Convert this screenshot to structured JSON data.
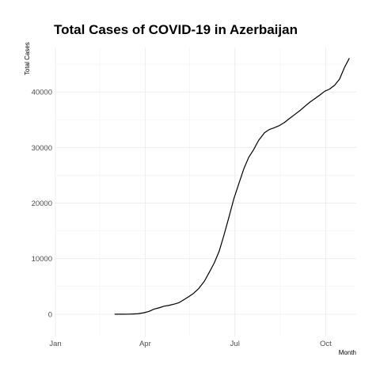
{
  "chart_data": {
    "type": "line",
    "title": "Total Cases of COVID-19 in Azerbaijan",
    "xlabel": "Month",
    "ylabel": "Total Cases",
    "grid": true,
    "xlim": [
      "2020-01-01",
      "2020-11-01"
    ],
    "ylim": [
      -4000,
      48000
    ],
    "x_ticks": [
      {
        "label": "Jan",
        "date": "2020-01-01"
      },
      {
        "label": "Apr",
        "date": "2020-04-01"
      },
      {
        "label": "Jul",
        "date": "2020-07-01"
      },
      {
        "label": "Oct",
        "date": "2020-10-01"
      }
    ],
    "y_ticks": [
      0,
      10000,
      20000,
      30000,
      40000
    ],
    "y_tick_labels": [
      "0",
      "10000",
      "20000",
      "30000",
      "40000"
    ],
    "series": [
      {
        "x": [
          "2020-03-01",
          "2020-03-05",
          "2020-03-10",
          "2020-03-15",
          "2020-03-20",
          "2020-03-25",
          "2020-03-31",
          "2020-04-05",
          "2020-04-10",
          "2020-04-15",
          "2020-04-20",
          "2020-04-25",
          "2020-05-01",
          "2020-05-05",
          "2020-05-10",
          "2020-05-15",
          "2020-05-20",
          "2020-05-25",
          "2020-05-31",
          "2020-06-05",
          "2020-06-10",
          "2020-06-15",
          "2020-06-20",
          "2020-06-25",
          "2020-06-30",
          "2020-07-05",
          "2020-07-10",
          "2020-07-15",
          "2020-07-20",
          "2020-07-25",
          "2020-07-31",
          "2020-08-05",
          "2020-08-10",
          "2020-08-15",
          "2020-08-20",
          "2020-08-25",
          "2020-08-31",
          "2020-09-05",
          "2020-09-10",
          "2020-09-15",
          "2020-09-20",
          "2020-09-25",
          "2020-09-30",
          "2020-10-05",
          "2020-10-10",
          "2020-10-15",
          "2020-10-20",
          "2020-10-25"
        ],
        "values": [
          3,
          9,
          11,
          15,
          44,
          93,
          273,
          521,
          926,
          1148,
          1436,
          1592,
          1854,
          2060,
          2589,
          3138,
          3749,
          4568,
          5935,
          7553,
          9218,
          11329,
          14305,
          17524,
          20837,
          23521,
          26165,
          28242,
          29633,
          31274,
          32663,
          33247,
          33568,
          33946,
          34480,
          35176,
          35986,
          36671,
          37429,
          38172,
          38788,
          39436,
          40119,
          40522,
          41194,
          42277,
          44383,
          46086
        ]
      }
    ]
  }
}
